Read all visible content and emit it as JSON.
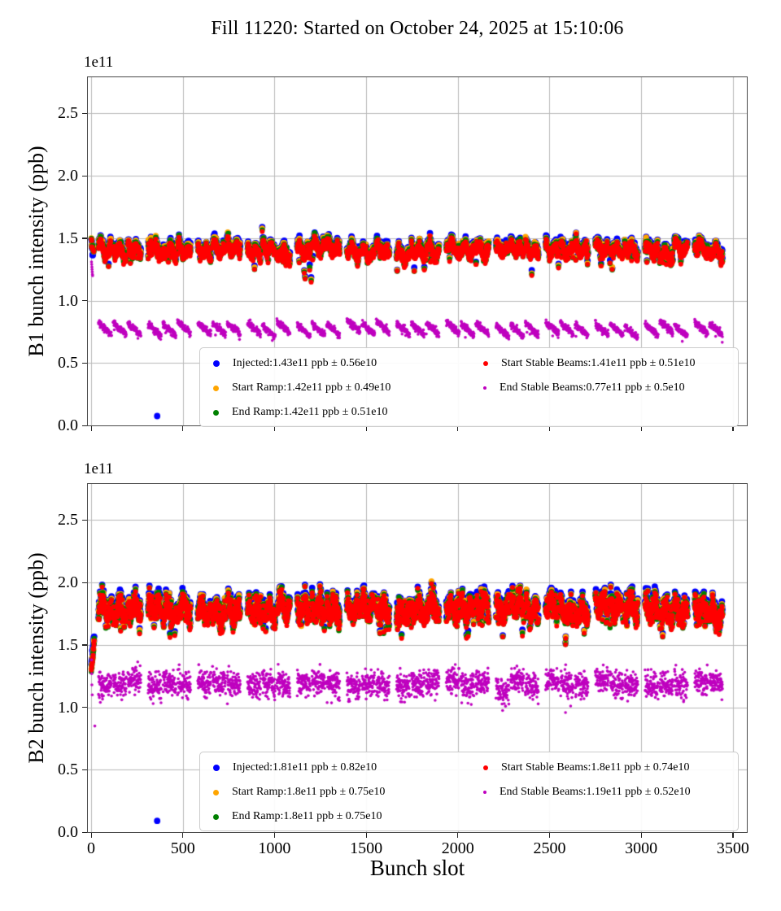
{
  "figure": {
    "title": "Fill 11220: Started on October 24, 2025 at 15:10:06",
    "xlabel": "Bunch slot",
    "background": "#ffffff",
    "grid_color": "#b9b9b9",
    "spine_color": "#4a4a4a",
    "tick_color": "#222222"
  },
  "chart_data": [
    {
      "type": "scatter",
      "plot_id": "b1",
      "ylabel": "B1 bunch intensity (ppb)",
      "offset_text": "1e11",
      "xlim": [
        -18,
        3576
      ],
      "ylim": [
        0,
        2.79
      ],
      "grid": true,
      "legend_position": "lower center",
      "xticks": [
        0,
        500,
        1000,
        1500,
        2000,
        2500,
        3000,
        3500
      ],
      "xtick_labels": [
        "0",
        "500",
        "1000",
        "1500",
        "2000",
        "2500",
        "3000",
        "3500"
      ],
      "xtick_labels_visible": false,
      "yticks": [
        0.0,
        0.5,
        1.0,
        1.5,
        2.0,
        2.5
      ],
      "ytick_labels": [
        "0.0",
        "0.5",
        "1.0",
        "1.5",
        "2.0",
        "2.5"
      ],
      "series": [
        {
          "name": "Injected",
          "legend_label": "Injected:1.43e11 ppb ± 0.56e10",
          "color": "#0000ff",
          "mean_e11": 1.43,
          "std_e10": 0.56,
          "radius": 3.9,
          "band": "main",
          "offset": 0.018
        },
        {
          "name": "Start Ramp",
          "legend_label": "Start Ramp:1.42e11 ppb ± 0.49e10",
          "color": "#ffa500",
          "mean_e11": 1.42,
          "std_e10": 0.49,
          "radius": 3.55,
          "band": "main",
          "offset": 0.008
        },
        {
          "name": "End Ramp",
          "legend_label": "End Ramp:1.42e11 ppb ± 0.51e10",
          "color": "#008000",
          "mean_e11": 1.42,
          "std_e10": 0.51,
          "radius": 3.25,
          "band": "main",
          "offset": 0.0
        },
        {
          "name": "Start Stable Beams",
          "legend_label": "Start Stable Beams:1.41e11 ppb ± 0.51e10",
          "color": "#ff0000",
          "mean_e11": 1.41,
          "std_e10": 0.51,
          "radius": 2.95,
          "band": "main",
          "offset": -0.008
        },
        {
          "name": "End Stable Beams",
          "legend_label": "End Stable Beams:0.77e11 ppb ± 0.5e10",
          "color": "#bf00bf",
          "mean_e11": 0.77,
          "std_e10": 0.5,
          "radius": 1.8,
          "band": "low",
          "offset": 0.0
        }
      ],
      "legend_columns": [
        [
          0,
          1,
          2
        ],
        [
          3,
          4
        ]
      ],
      "trains": {
        "first_slot": 40,
        "train_len": 72,
        "intra_gap": 8,
        "group_size": 3,
        "group_gap": 31,
        "last_slot": 3440
      },
      "main_band": {
        "center": 1.43,
        "train_sigma": 0.016,
        "bunch_sigma": 0.022,
        "wave_amp": 0.035,
        "decay": 0.045,
        "dip_prob": 0.015,
        "dip_depth": 0.12
      },
      "low_band": {
        "center": 0.77,
        "train_sigma": 0.012,
        "bunch_sigma": 0.014,
        "train_slope": 0.09,
        "low_out_prob": 0.004,
        "low_out_depth": 0.05
      },
      "early_main": {
        "n": 11,
        "x0": 1,
        "dx": 1.3,
        "y0": 1.47,
        "dy": -0.009,
        "sigma": 0.02,
        "blue_spread": 0.09
      },
      "early_low_points": [
        [
          2,
          1.31
        ],
        [
          3,
          1.29
        ],
        [
          4,
          1.27
        ],
        [
          5,
          1.25
        ],
        [
          6,
          1.23
        ],
        [
          7,
          1.21
        ],
        [
          8,
          1.2
        ]
      ],
      "outliers": [
        {
          "series": "Injected",
          "x": 360,
          "y": 0.075
        },
        {
          "series": "main",
          "x": 1200,
          "y": 1.16
        }
      ]
    },
    {
      "type": "scatter",
      "plot_id": "b2",
      "ylabel": "B2 bunch intensity (ppb)",
      "offset_text": "1e11",
      "xlim": [
        -18,
        3576
      ],
      "ylim": [
        0,
        2.79
      ],
      "grid": true,
      "legend_position": "lower center",
      "xticks": [
        0,
        500,
        1000,
        1500,
        2000,
        2500,
        3000,
        3500
      ],
      "xtick_labels": [
        "0",
        "500",
        "1000",
        "1500",
        "2000",
        "2500",
        "3000",
        "3500"
      ],
      "xtick_labels_visible": true,
      "yticks": [
        0.0,
        0.5,
        1.0,
        1.5,
        2.0,
        2.5
      ],
      "ytick_labels": [
        "0.0",
        "0.5",
        "1.0",
        "1.5",
        "2.0",
        "2.5"
      ],
      "series": [
        {
          "name": "Injected",
          "legend_label": "Injected:1.81e11 ppb ± 0.82e10",
          "color": "#0000ff",
          "mean_e11": 1.81,
          "std_e10": 0.82,
          "radius": 3.9,
          "band": "main",
          "offset": 0.022
        },
        {
          "name": "Start Ramp",
          "legend_label": "Start Ramp:1.8e11 ppb ± 0.75e10",
          "color": "#ffa500",
          "mean_e11": 1.8,
          "std_e10": 0.75,
          "radius": 3.55,
          "band": "main",
          "offset": 0.006
        },
        {
          "name": "End Ramp",
          "legend_label": "End Ramp:1.8e11 ppb ± 0.75e10",
          "color": "#008000",
          "mean_e11": 1.8,
          "std_e10": 0.75,
          "radius": 3.25,
          "band": "main",
          "offset": 0.0
        },
        {
          "name": "Start Stable Beams",
          "legend_label": "Start Stable Beams:1.8e11 ppb ± 0.74e10",
          "color": "#ff0000",
          "mean_e11": 1.8,
          "std_e10": 0.74,
          "radius": 2.95,
          "band": "main",
          "offset": -0.006
        },
        {
          "name": "End Stable Beams",
          "legend_label": "End Stable Beams:1.19e11 ppb ± 0.52e10",
          "color": "#bf00bf",
          "mean_e11": 1.19,
          "std_e10": 0.52,
          "radius": 1.8,
          "band": "low",
          "offset": 0.0
        }
      ],
      "legend_columns": [
        [
          0,
          1,
          2
        ],
        [
          3,
          4
        ]
      ],
      "trains": {
        "first_slot": 40,
        "train_len": 72,
        "intra_gap": 8,
        "group_size": 3,
        "group_gap": 31,
        "last_slot": 3440
      },
      "main_band": {
        "center": 1.8,
        "train_sigma": 0.028,
        "bunch_sigma": 0.045,
        "wave_amp": 0.05,
        "decay": 0.03,
        "dip_prob": 0.02,
        "dip_depth": 0.15
      },
      "low_band": {
        "center": 1.19,
        "train_sigma": 0.02,
        "bunch_sigma": 0.052,
        "train_slope": 0.02,
        "low_out_prob": 0.008,
        "low_out_depth": 0.12
      },
      "early_main": {
        "n": 14,
        "x0": 1,
        "dx": 1.2,
        "y0": 1.3,
        "dy": 0.017,
        "sigma": 0.018,
        "blue_spread": -0.05
      },
      "early_low_points": [
        [
          2,
          1.38
        ],
        [
          3,
          1.27
        ],
        [
          4,
          1.18
        ],
        [
          6,
          1.1
        ],
        [
          20,
          0.85
        ]
      ],
      "outliers": [
        {
          "series": "Injected",
          "x": 360,
          "y": 0.09
        }
      ]
    }
  ]
}
